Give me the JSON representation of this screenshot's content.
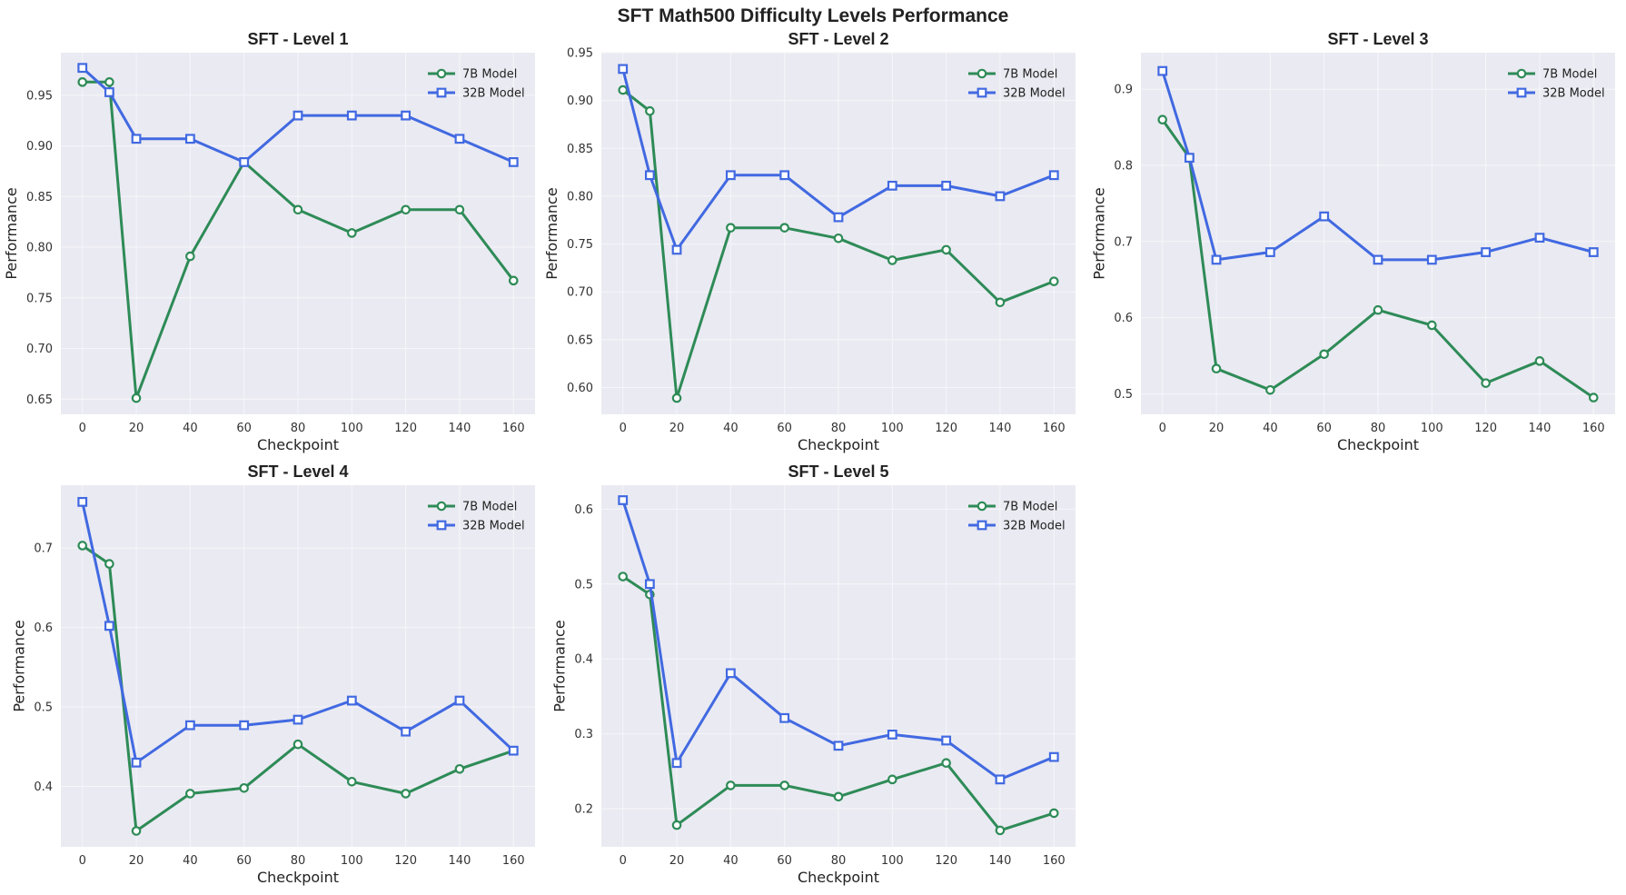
{
  "figure": {
    "suptitle": "SFT Math500 Difficulty Levels Performance"
  },
  "colors": {
    "plot_background": "#eaeaf2",
    "grid": "#f6f6fa",
    "series_7b": "#2e8b57",
    "series_32b": "#4169e1"
  },
  "chart_data": [
    {
      "type": "line",
      "title": "SFT - Level 1",
      "xlabel": "Checkpoint",
      "ylabel": "Performance",
      "x": [
        0,
        10,
        20,
        40,
        60,
        80,
        100,
        120,
        140,
        160
      ],
      "xticks": [
        0,
        20,
        40,
        60,
        80,
        100,
        120,
        140,
        160
      ],
      "xlim": [
        -8,
        168
      ],
      "ylim": [
        0.635,
        0.992
      ],
      "yticks": [
        0.65,
        0.7,
        0.75,
        0.8,
        0.85,
        0.9,
        0.95
      ],
      "ytick_labels": [
        "0.65",
        "0.70",
        "0.75",
        "0.80",
        "0.85",
        "0.90",
        "0.95"
      ],
      "legend": "top-right",
      "grid": true,
      "series": [
        {
          "name": "7B Model",
          "marker": "circle",
          "color": "#2e8b57",
          "values": [
            0.963,
            0.963,
            0.651,
            0.791,
            0.884,
            0.837,
            0.814,
            0.837,
            0.837,
            0.767
          ]
        },
        {
          "name": "32B Model",
          "marker": "square",
          "color": "#4169e1",
          "values": [
            0.977,
            0.953,
            0.907,
            0.907,
            0.884,
            0.93,
            0.93,
            0.93,
            0.907,
            0.884
          ]
        }
      ]
    },
    {
      "type": "line",
      "title": "SFT - Level 2",
      "xlabel": "Checkpoint",
      "ylabel": "Performance",
      "x": [
        0,
        10,
        20,
        40,
        60,
        80,
        100,
        120,
        140,
        160
      ],
      "xticks": [
        0,
        20,
        40,
        60,
        80,
        100,
        120,
        140,
        160
      ],
      "xlim": [
        -8,
        168
      ],
      "ylim": [
        0.572,
        0.95
      ],
      "yticks": [
        0.6,
        0.65,
        0.7,
        0.75,
        0.8,
        0.85,
        0.9,
        0.95
      ],
      "ytick_labels": [
        "0.60",
        "0.65",
        "0.70",
        "0.75",
        "0.80",
        "0.85",
        "0.90",
        "0.95"
      ],
      "legend": "top-right",
      "grid": true,
      "series": [
        {
          "name": "7B Model",
          "marker": "circle",
          "color": "#2e8b57",
          "values": [
            0.911,
            0.889,
            0.589,
            0.767,
            0.767,
            0.756,
            0.733,
            0.744,
            0.689,
            0.711
          ]
        },
        {
          "name": "32B Model",
          "marker": "square",
          "color": "#4169e1",
          "values": [
            0.933,
            0.822,
            0.744,
            0.822,
            0.822,
            0.778,
            0.811,
            0.811,
            0.8,
            0.822
          ]
        }
      ]
    },
    {
      "type": "line",
      "title": "SFT - Level 3",
      "xlabel": "Checkpoint",
      "ylabel": "Performance",
      "x": [
        0,
        10,
        20,
        40,
        60,
        80,
        100,
        120,
        140,
        160
      ],
      "xticks": [
        0,
        20,
        40,
        60,
        80,
        100,
        120,
        140,
        160
      ],
      "xlim": [
        -8,
        168
      ],
      "ylim": [
        0.473,
        0.948
      ],
      "yticks": [
        0.5,
        0.6,
        0.7,
        0.8,
        0.9
      ],
      "ytick_labels": [
        "0.5",
        "0.6",
        "0.7",
        "0.8",
        "0.9"
      ],
      "legend": "top-right",
      "grid": true,
      "series": [
        {
          "name": "7B Model",
          "marker": "circle",
          "color": "#2e8b57",
          "values": [
            0.86,
            0.81,
            0.533,
            0.505,
            0.552,
            0.61,
            0.59,
            0.514,
            0.543,
            0.495
          ]
        },
        {
          "name": "32B Model",
          "marker": "square",
          "color": "#4169e1",
          "values": [
            0.924,
            0.81,
            0.676,
            0.686,
            0.733,
            0.676,
            0.676,
            0.686,
            0.705,
            0.686
          ]
        }
      ]
    },
    {
      "type": "line",
      "title": "SFT - Level 4",
      "xlabel": "Checkpoint",
      "ylabel": "Performance",
      "x": [
        0,
        10,
        20,
        40,
        60,
        80,
        100,
        120,
        140,
        160
      ],
      "xticks": [
        0,
        20,
        40,
        60,
        80,
        100,
        120,
        140,
        160
      ],
      "xlim": [
        -8,
        168
      ],
      "ylim": [
        0.324,
        0.779
      ],
      "yticks": [
        0.4,
        0.5,
        0.6,
        0.7
      ],
      "ytick_labels": [
        "0.4",
        "0.5",
        "0.6",
        "0.7"
      ],
      "legend": "top-right",
      "grid": true,
      "series": [
        {
          "name": "7B Model",
          "marker": "circle",
          "color": "#2e8b57",
          "values": [
            0.703,
            0.68,
            0.344,
            0.391,
            0.398,
            0.453,
            0.406,
            0.391,
            0.422,
            0.445
          ]
        },
        {
          "name": "32B Model",
          "marker": "square",
          "color": "#4169e1",
          "values": [
            0.758,
            0.602,
            0.43,
            0.477,
            0.477,
            0.484,
            0.508,
            0.469,
            0.508,
            0.445
          ]
        }
      ]
    },
    {
      "type": "line",
      "title": "SFT - Level 5",
      "xlabel": "Checkpoint",
      "ylabel": "Performance",
      "x": [
        0,
        10,
        20,
        40,
        60,
        80,
        100,
        120,
        140,
        160
      ],
      "xticks": [
        0,
        20,
        40,
        60,
        80,
        100,
        120,
        140,
        160
      ],
      "xlim": [
        -8,
        168
      ],
      "ylim": [
        0.149,
        0.632
      ],
      "yticks": [
        0.2,
        0.3,
        0.4,
        0.5,
        0.6
      ],
      "ytick_labels": [
        "0.2",
        "0.3",
        "0.4",
        "0.5",
        "0.6"
      ],
      "legend": "top-right",
      "grid": true,
      "series": [
        {
          "name": "7B Model",
          "marker": "circle",
          "color": "#2e8b57",
          "values": [
            0.51,
            0.486,
            0.178,
            0.231,
            0.231,
            0.216,
            0.239,
            0.261,
            0.171,
            0.194
          ]
        },
        {
          "name": "32B Model",
          "marker": "square",
          "color": "#4169e1",
          "values": [
            0.612,
            0.5,
            0.261,
            0.381,
            0.321,
            0.284,
            0.299,
            0.291,
            0.239,
            0.269
          ]
        }
      ]
    }
  ]
}
